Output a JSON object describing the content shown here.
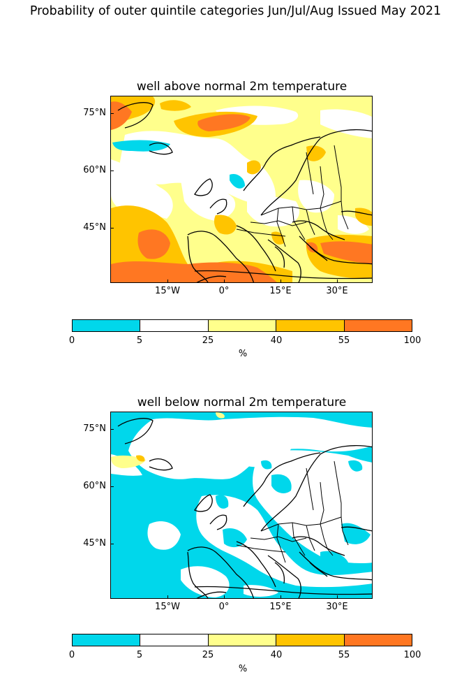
{
  "figure": {
    "title": "Probability of outer quintile categories Jun/Jul/Aug Issued May 2021"
  },
  "panels": [
    {
      "title": "well above normal 2m temperature",
      "lat_ticks": [
        "75°N",
        "60°N",
        "45°N"
      ],
      "lon_ticks": [
        "15°W",
        "0°",
        "15°E",
        "30°E"
      ]
    },
    {
      "title": "well below normal 2m temperature",
      "lat_ticks": [
        "75°N",
        "60°N",
        "45°N"
      ],
      "lon_ticks": [
        "15°W",
        "0°",
        "15°E",
        "30°E"
      ]
    }
  ],
  "colorbar": {
    "ticks": [
      "0",
      "5",
      "25",
      "40",
      "55",
      "100"
    ],
    "unit": "%",
    "colors": [
      "#00d7eb",
      "#ffffff",
      "#ffff8c",
      "#ffc400",
      "#ff7722"
    ]
  },
  "map_colors": {
    "ocean_white": "#ffffff",
    "coast": "#000000"
  }
}
